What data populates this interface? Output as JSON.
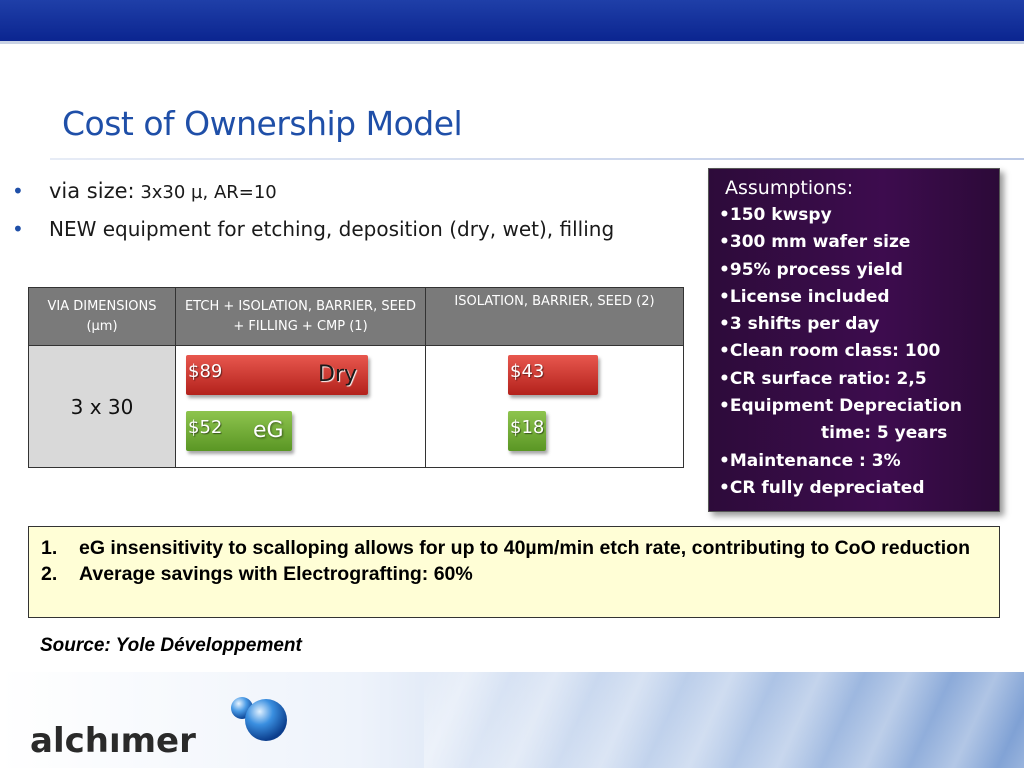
{
  "title": "Cost of Ownership Model",
  "bullets": [
    {
      "lead": "via  size:",
      "rest": " 3x30 µ, AR=10"
    },
    {
      "text": "NEW equipment for etching, deposition (dry, wet), filling"
    }
  ],
  "table": {
    "headers": [
      "VIA DIMENSIONS (µm)",
      "ETCH + ISOLATION, BARRIER, SEED + FILLING + CMP  (1)",
      "ISOLATION, BARRIER, SEED (2)"
    ],
    "row_label": "3 x 30"
  },
  "chart_data": [
    {
      "type": "bar",
      "categories": [
        "Dry",
        "eG"
      ],
      "values": [
        89,
        52
      ],
      "labels": [
        "$89",
        "$52"
      ],
      "group": "ETCH + ISOLATION, BARRIER, SEED + FILLING + CMP  (1)"
    },
    {
      "type": "bar",
      "categories": [
        "Dry",
        "eG"
      ],
      "values": [
        43,
        18
      ],
      "labels": [
        "$43",
        "$18"
      ],
      "group": "ISOLATION, BARRIER, SEED (2)"
    }
  ],
  "assumptions": {
    "heading": "Assumptions:",
    "items": [
      "•150 kwspy",
      "•300 mm wafer size",
      "•95% process yield",
      "•License included",
      "•3 shifts per day",
      "•Clean room class: 100",
      "•CR surface ratio: 2,5",
      "•Equipment Depreciation",
      "time: 5 years",
      "•Maintenance : 3%",
      "•CR fully depreciated"
    ]
  },
  "notes": [
    {
      "num": "1.",
      "text": "eG insensitivity to scalloping allows for up to 40µm/min etch rate, contributing to CoO reduction"
    },
    {
      "num": "2.",
      "text": "Average savings with Electrografting: 60%"
    }
  ],
  "source": "Source: Yole Développement",
  "logo_text": "alchimer",
  "colors": {
    "title": "#1f4fa8",
    "dry_bar": "#c8302a",
    "eg_bar": "#6fad34",
    "assumptions_bg": "#3a0c4a",
    "notes_bg": "#fffed6"
  }
}
